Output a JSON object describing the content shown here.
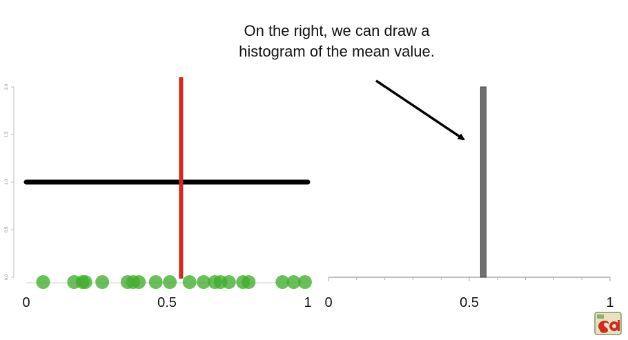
{
  "annotation": {
    "text": "On the right, we can draw a histogram of the mean value."
  },
  "colors": {
    "point": "#3fae2a",
    "mean_line": "#d42a1e",
    "density_line": "#000000",
    "bar": "#707070",
    "arrow": "#000000",
    "axis": "#888888"
  },
  "chart_data": [
    {
      "type": "scatter",
      "title": "",
      "xlabel": "",
      "ylabel": "",
      "xlim": [
        0,
        1
      ],
      "ylim": [
        0,
        2
      ],
      "x_ticks": [
        "0",
        "0.5",
        "1"
      ],
      "y_ticks": [
        "0.0",
        "0.5",
        "1.0",
        "1.5",
        "2.0"
      ],
      "points": {
        "x": [
          0.06,
          0.17,
          0.2,
          0.21,
          0.27,
          0.36,
          0.38,
          0.4,
          0.46,
          0.51,
          0.58,
          0.63,
          0.67,
          0.69,
          0.72,
          0.77,
          0.79,
          0.91,
          0.95,
          0.99
        ],
        "y": 0
      },
      "horizontal_line": {
        "y": 1.0,
        "x_start": 0,
        "x_end": 1
      },
      "mean_line": {
        "x": 0.55
      },
      "grid": false
    },
    {
      "type": "bar",
      "title": "",
      "xlabel": "",
      "ylabel": "",
      "xlim": [
        0,
        1
      ],
      "x_ticks": [
        "0",
        "0.5",
        "1"
      ],
      "bins": [
        {
          "x": 0.55,
          "height": 2.0
        }
      ],
      "grid": false
    }
  ]
}
